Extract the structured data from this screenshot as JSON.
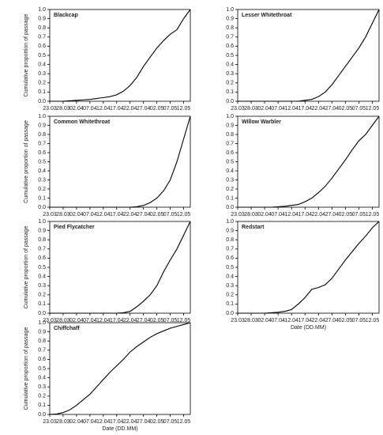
{
  "chart_data": [
    {
      "type": "line",
      "title": "Blackcap",
      "ylabel": "Cumulative proportion of passage",
      "x": [
        "23.03",
        null,
        "28.03",
        null,
        "02.04",
        null,
        "07.04",
        null,
        "12.04",
        null,
        "17.04",
        null,
        "22.04",
        null,
        "27.04",
        null,
        "02.05",
        null,
        "07.05",
        null,
        "12.05",
        null
      ],
      "values": [
        0,
        0,
        0,
        0.005,
        0.01,
        0.015,
        0.02,
        0.03,
        0.04,
        0.05,
        0.07,
        0.11,
        0.17,
        0.26,
        0.38,
        0.48,
        0.58,
        0.66,
        0.73,
        0.78,
        0.9,
        1.0
      ],
      "color": "#000000",
      "ylim": [
        0,
        1
      ],
      "yticks": [
        {
          "value": 0,
          "label": "0.0"
        },
        0.1,
        0.2,
        0.3,
        0.4,
        0.5,
        0.6,
        0.7,
        0.8,
        0.9,
        {
          "value": 1,
          "label": "1.0"
        }
      ]
    },
    {
      "type": "line",
      "title": "Lesser Whitethroat",
      "x": [
        "23.03",
        null,
        "28.03",
        null,
        "02.04",
        null,
        "07.04",
        null,
        "12.04",
        null,
        "17.04",
        null,
        "22.04",
        null,
        "27.04",
        null,
        "02.05",
        null,
        "07.05",
        null,
        "12.05",
        null
      ],
      "values": [
        0,
        0,
        0,
        0,
        0,
        0,
        0,
        0,
        0,
        0,
        0.01,
        0.02,
        0.05,
        0.1,
        0.18,
        0.28,
        0.38,
        0.48,
        0.58,
        0.7,
        0.85,
        1.0
      ],
      "color": "#000000",
      "ylim": [
        0,
        1
      ],
      "yticks": [
        {
          "value": 0,
          "label": "0.0"
        },
        0.1,
        0.2,
        0.3,
        0.4,
        0.5,
        0.6,
        0.7,
        0.8,
        0.9,
        {
          "value": 1,
          "label": "1.0"
        }
      ]
    },
    {
      "type": "line",
      "title": "Common Whitethroat",
      "ylabel": "Cumulative proportion of passage",
      "x": [
        "23.03",
        null,
        "28.03",
        null,
        "02.04",
        null,
        "07.04",
        null,
        "12.04",
        null,
        "17.04",
        null,
        "22.04",
        null,
        "27.04",
        null,
        "02.05",
        null,
        "07.05",
        null,
        "12.05",
        null
      ],
      "values": [
        0,
        0,
        0,
        0,
        0,
        0,
        0,
        0,
        0,
        0,
        0,
        0,
        0,
        0.005,
        0.02,
        0.05,
        0.1,
        0.18,
        0.3,
        0.5,
        0.75,
        1.0
      ],
      "color": "#000000",
      "ylim": [
        0,
        1
      ],
      "yticks": [
        {
          "value": 0,
          "label": "0.0"
        },
        0.1,
        0.2,
        0.3,
        0.4,
        0.5,
        0.6,
        0.7,
        0.8,
        0.9,
        {
          "value": 1,
          "label": "1.0"
        }
      ]
    },
    {
      "type": "line",
      "title": "Willow Warbler",
      "x": [
        "23.03",
        null,
        "28.03",
        null,
        "02.04",
        null,
        "07.04",
        null,
        "12.04",
        null,
        "17.04",
        null,
        "22.04",
        null,
        "27.04",
        null,
        "02.05",
        null,
        "07.05",
        null,
        "12.05",
        null
      ],
      "values": [
        0,
        0,
        0,
        0,
        0,
        0,
        0.005,
        0.01,
        0.02,
        0.03,
        0.06,
        0.1,
        0.16,
        0.23,
        0.32,
        0.42,
        0.52,
        0.63,
        0.73,
        0.8,
        0.9,
        1.0
      ],
      "color": "#000000",
      "ylim": [
        0,
        1
      ],
      "yticks": [
        {
          "value": 0,
          "label": "0.0"
        },
        0.1,
        0.2,
        0.3,
        0.4,
        0.5,
        0.6,
        0.7,
        0.8,
        0.9,
        {
          "value": 1,
          "label": "1.0"
        }
      ]
    },
    {
      "type": "line",
      "title": "Pied Flycatcher",
      "ylabel": "Cumulative proportion of passage",
      "x": [
        "23.03",
        null,
        "28.03",
        null,
        "02.04",
        null,
        "07.04",
        null,
        "12.04",
        null,
        "17.04",
        null,
        "22.04",
        null,
        "27.04",
        null,
        "02.05",
        null,
        "07.05",
        null,
        "12.05",
        null
      ],
      "values": [
        0,
        0,
        0,
        0,
        0,
        0,
        0,
        0,
        0,
        0,
        0,
        0.005,
        0.02,
        0.07,
        0.13,
        0.2,
        0.3,
        0.45,
        0.58,
        0.7,
        0.85,
        1.0
      ],
      "color": "#000000",
      "ylim": [
        0,
        1
      ],
      "yticks": [
        {
          "value": 0,
          "label": "0.0"
        },
        0.1,
        0.2,
        0.3,
        0.4,
        0.5,
        0.6,
        0.7,
        0.8,
        0.9,
        {
          "value": 1,
          "label": "1.0"
        }
      ]
    },
    {
      "type": "line",
      "title": "Redstart",
      "xlabel": "Date (DD.MM)",
      "x": [
        "23.03",
        null,
        "28.03",
        null,
        "02.04",
        null,
        "07.04",
        null,
        "12.04",
        null,
        "17.04",
        null,
        "22.04",
        null,
        "27.04",
        null,
        "02.05",
        null,
        "07.05",
        null,
        "12.05",
        null
      ],
      "values": [
        0,
        0,
        0,
        0,
        0,
        0.005,
        0.01,
        0.02,
        0.04,
        0.1,
        0.17,
        0.26,
        0.28,
        0.31,
        0.38,
        0.48,
        0.58,
        0.67,
        0.76,
        0.84,
        0.93,
        1.0
      ],
      "color": "#000000",
      "ylim": [
        0,
        1
      ],
      "yticks": [
        {
          "value": 0,
          "label": "0.0"
        },
        0.1,
        0.2,
        0.3,
        0.4,
        0.5,
        0.6,
        0.7,
        0.8,
        0.9,
        {
          "value": 1,
          "label": "1.0"
        }
      ]
    },
    {
      "type": "line",
      "title": "Chiffchaff",
      "ylabel": "Cumulative proportion of passage",
      "xlabel": "Date (DD.MM)",
      "x": [
        "23.03",
        null,
        "28.03",
        null,
        "02.04",
        null,
        "07.04",
        null,
        "12.04",
        null,
        "17.04",
        null,
        "22.04",
        null,
        "27.04",
        null,
        "02.05",
        null,
        "07.05",
        null,
        "12.05",
        null
      ],
      "values": [
        0,
        0.005,
        0.02,
        0.05,
        0.1,
        0.16,
        0.22,
        0.3,
        0.38,
        0.46,
        0.53,
        0.6,
        0.68,
        0.74,
        0.79,
        0.84,
        0.88,
        0.91,
        0.94,
        0.96,
        0.98,
        1.0
      ],
      "color": "#000000",
      "ylim": [
        0,
        1
      ],
      "yticks": [
        {
          "value": 0,
          "label": "0.0"
        },
        0.1,
        0.2,
        0.3,
        0.4,
        0.5,
        0.6,
        0.7,
        0.8,
        0.9,
        {
          "value": 1,
          "label": "1.0"
        }
      ]
    }
  ]
}
